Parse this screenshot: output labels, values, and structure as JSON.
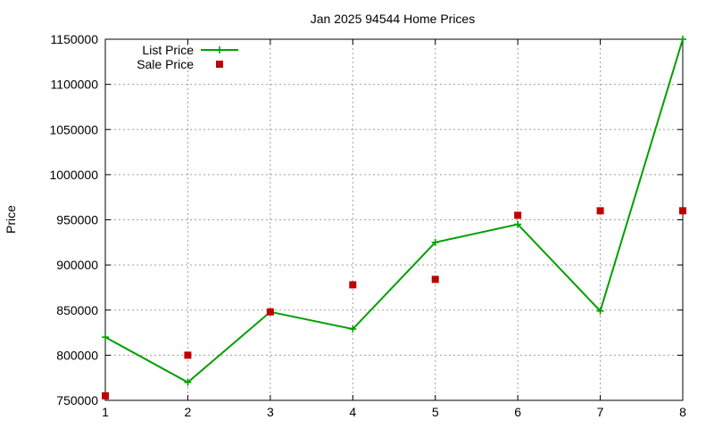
{
  "chart_data": {
    "type": "line",
    "title": "Jan 2025 94544 Home Prices",
    "xlabel": "",
    "ylabel": "Price",
    "x": [
      1,
      2,
      3,
      4,
      5,
      6,
      7,
      8
    ],
    "xlim": [
      1,
      8
    ],
    "ylim": [
      750000,
      1150000
    ],
    "xticks": [
      "1",
      "2",
      "3",
      "4",
      "5",
      "6",
      "7",
      "8"
    ],
    "yticks": [
      "750000",
      "800000",
      "850000",
      "900000",
      "950000",
      "1000000",
      "1050000",
      "1100000",
      "1150000"
    ],
    "grid": true,
    "legend_position": "top-left",
    "series": [
      {
        "name": "List Price",
        "style": "line-with-plus-markers",
        "color": "#00a000",
        "values": [
          820000,
          770000,
          848000,
          829000,
          925000,
          945000,
          849000,
          1150000
        ]
      },
      {
        "name": "Sale Price",
        "style": "square-markers",
        "color": "#c00000",
        "values": [
          755000,
          800000,
          848000,
          878000,
          884000,
          955000,
          960000,
          960000
        ]
      }
    ]
  }
}
